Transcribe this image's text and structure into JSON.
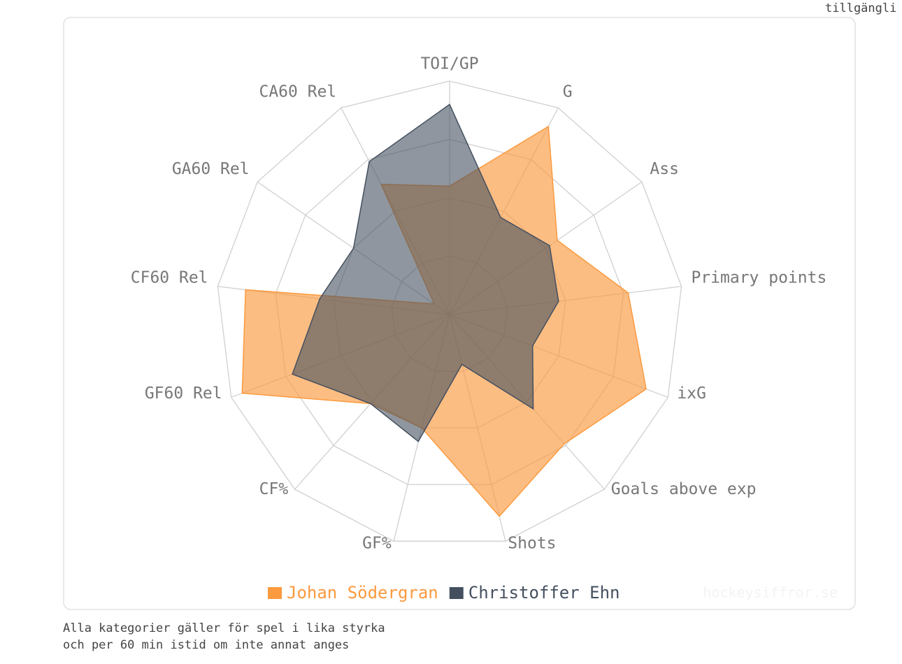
{
  "chart_data": {
    "type": "radar",
    "corner_note": "tillgängli",
    "watermark": "hockeysiffror.se",
    "footnote": [
      "Alla kategorier gäller för spel i lika styrka",
      "och per 60 min istid om inte annat anges"
    ],
    "categories": [
      "TOI/GP",
      "G",
      "Ass",
      "Primary points",
      "ixG",
      "Goals above exp",
      "Shots",
      "GF%",
      "CF%",
      "GF60 Rel",
      "CF60 Rel",
      "GA60 Rel",
      "CA60 Rel"
    ],
    "rlim": [
      0,
      100
    ],
    "rticks": [
      25,
      50,
      75,
      100
    ],
    "grid": true,
    "legend": "bottom",
    "series": [
      {
        "name": "Johan Södergran",
        "color": "#fb9a3f",
        "values": [
          55,
          91,
          56,
          77,
          90,
          74,
          89,
          50,
          51,
          95,
          88,
          8,
          63
        ]
      },
      {
        "name": "Christoffer Ehn",
        "color": "#44505f",
        "values": [
          90,
          47,
          52,
          47,
          38,
          54,
          22,
          56,
          51,
          72,
          56,
          50,
          74
        ]
      }
    ]
  }
}
